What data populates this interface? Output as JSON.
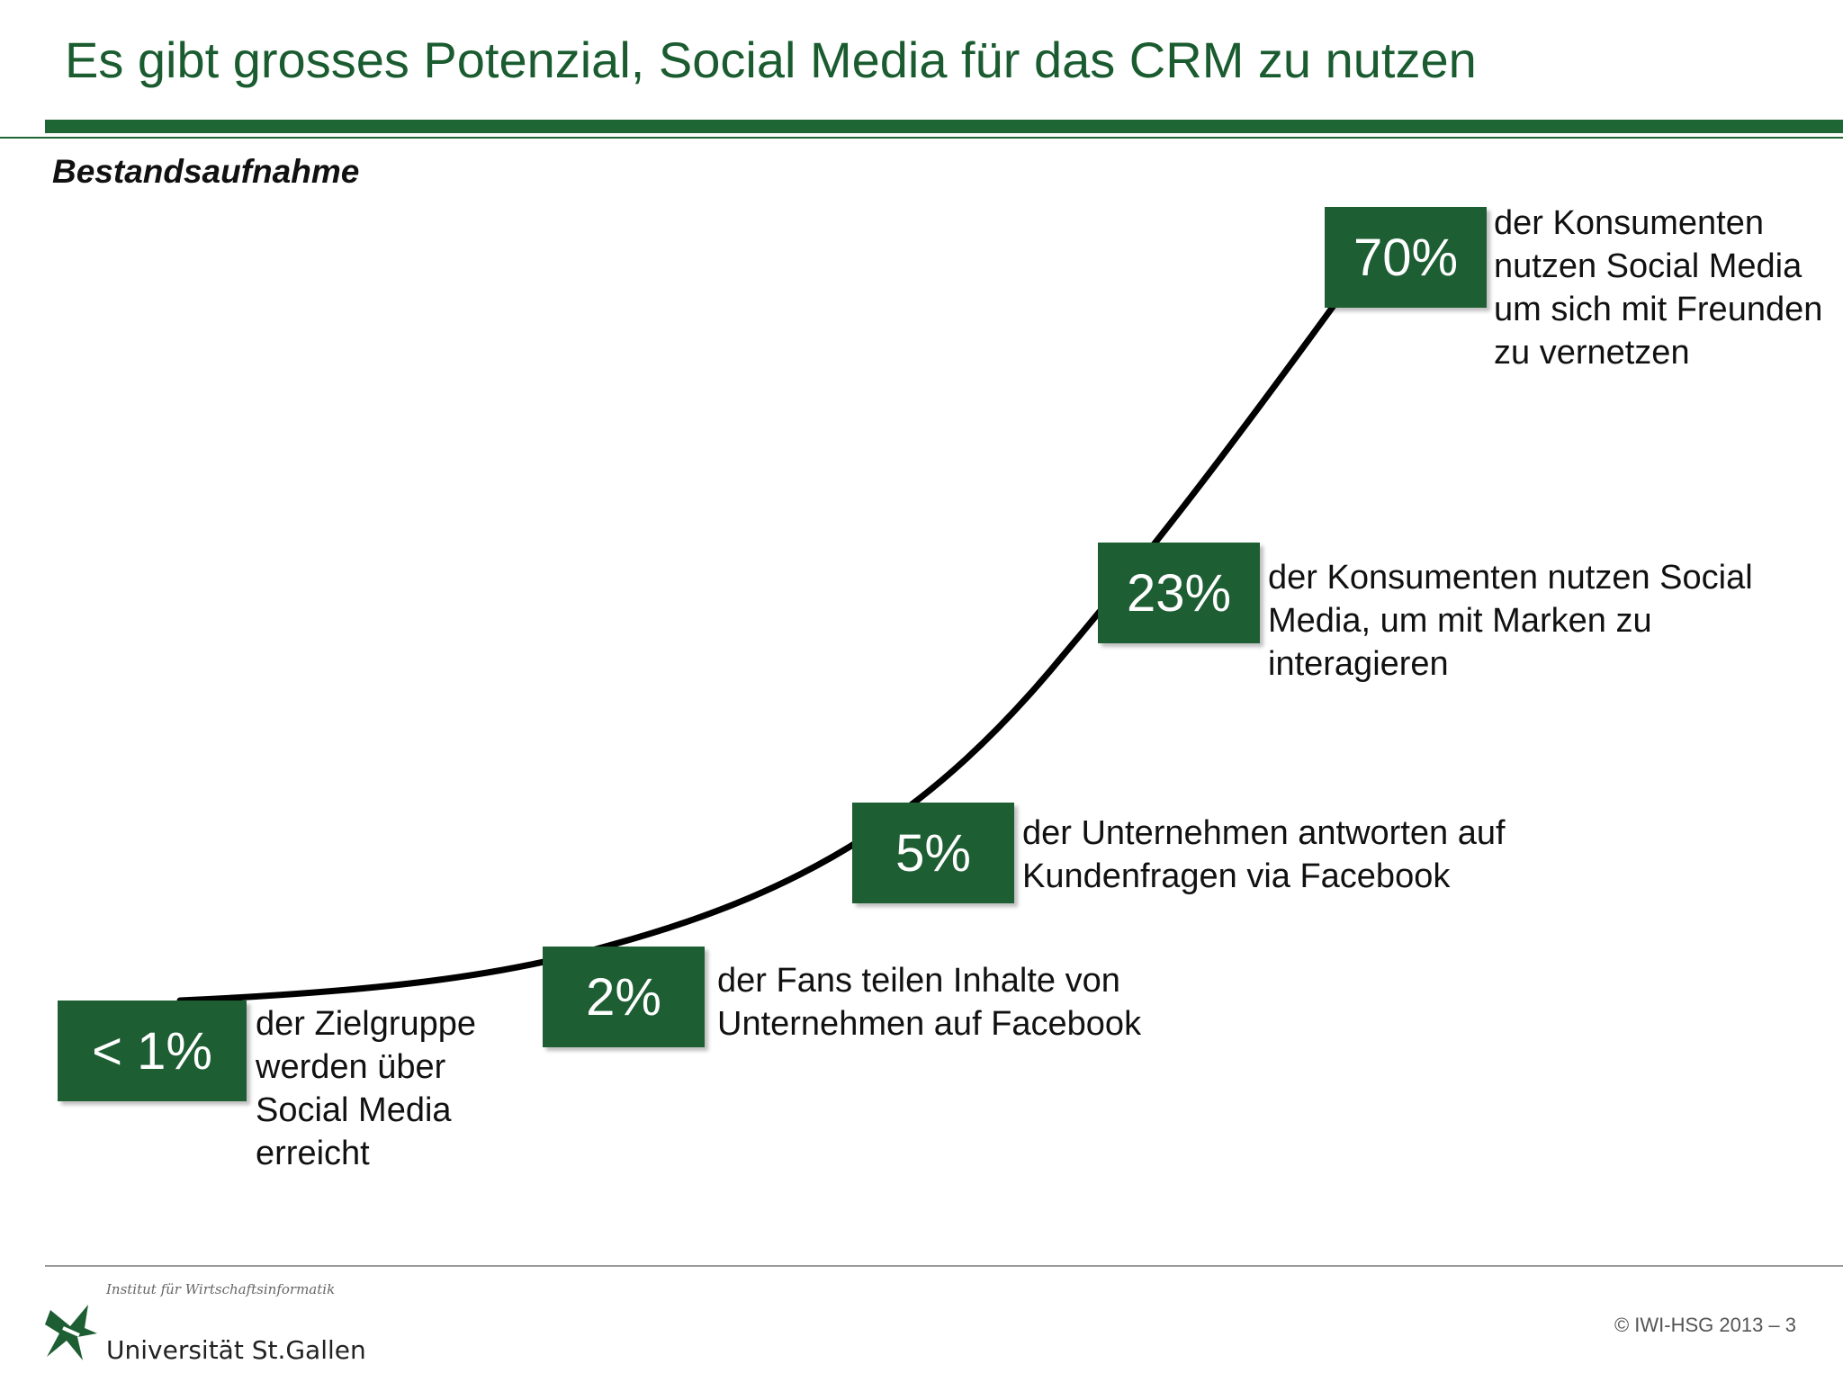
{
  "header": {
    "title": "Es gibt grosses Potenzial, Social Media für das CRM zu nutzen",
    "subtitle": "Bestandsaufnahme"
  },
  "steps": [
    {
      "value": "< 1%",
      "text": [
        "der Zielgruppe",
        "werden über",
        "Social Media",
        "erreicht"
      ]
    },
    {
      "value": "2%",
      "text": [
        "der Fans teilen Inhalte von",
        "Unternehmen auf Facebook"
      ]
    },
    {
      "value": "5%",
      "text": [
        "der Unternehmen antworten auf",
        "Kundenfragen via Facebook"
      ]
    },
    {
      "value": "23%",
      "text": [
        "der Konsumenten nutzen Social",
        "Media, um mit Marken zu",
        "interagieren"
      ]
    },
    {
      "value": "70%",
      "text": [
        "der Konsumenten",
        "nutzen Social Media",
        "um sich mit Freunden",
        "zu vernetzen"
      ]
    }
  ],
  "footer": {
    "institute": "Institut für Wirtschaftsinformatik",
    "university": "Universität St.Gallen",
    "copyright": "© IWI-HSG 2013 – 3"
  },
  "colors": {
    "accent": "#1d5e33",
    "curve": "#000000"
  }
}
